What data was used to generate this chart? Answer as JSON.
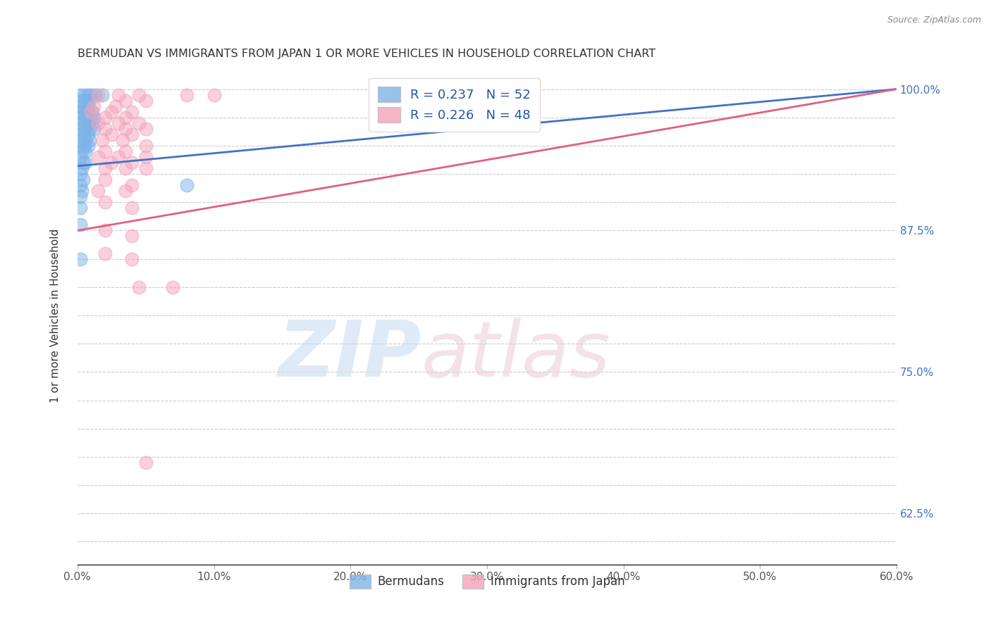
{
  "title": "BERMUDAN VS IMMIGRANTS FROM JAPAN 1 OR MORE VEHICLES IN HOUSEHOLD CORRELATION CHART",
  "source": "Source: ZipAtlas.com",
  "xlim": [
    0.0,
    60.0
  ],
  "ylim": [
    58.0,
    102.0
  ],
  "ylabel": "1 or more Vehicles in Household",
  "R_blue": 0.237,
  "N_blue": 52,
  "R_pink": 0.226,
  "N_pink": 48,
  "blue_color": "#7EB3E8",
  "pink_color": "#F4A3B8",
  "blue_line_color": "#4472C4",
  "pink_line_color": "#E06080",
  "grid_color": "#CCCCCC",
  "title_color": "#333333",
  "right_tick_color": "#4472C4",
  "blue_scatter": [
    [
      0.2,
      99.5
    ],
    [
      0.5,
      99.5
    ],
    [
      0.8,
      99.5
    ],
    [
      1.0,
      99.5
    ],
    [
      1.3,
      99.5
    ],
    [
      1.8,
      99.5
    ],
    [
      0.3,
      99.0
    ],
    [
      0.6,
      99.0
    ],
    [
      0.9,
      99.0
    ],
    [
      0.2,
      98.5
    ],
    [
      0.5,
      98.5
    ],
    [
      0.8,
      98.5
    ],
    [
      0.2,
      98.0
    ],
    [
      0.5,
      98.0
    ],
    [
      0.8,
      98.0
    ],
    [
      1.1,
      98.0
    ],
    [
      0.3,
      97.5
    ],
    [
      0.6,
      97.5
    ],
    [
      0.9,
      97.5
    ],
    [
      1.2,
      97.5
    ],
    [
      0.2,
      97.0
    ],
    [
      0.5,
      97.0
    ],
    [
      0.8,
      97.0
    ],
    [
      1.1,
      97.0
    ],
    [
      0.3,
      96.5
    ],
    [
      0.6,
      96.5
    ],
    [
      0.9,
      96.5
    ],
    [
      1.2,
      96.5
    ],
    [
      0.2,
      96.0
    ],
    [
      0.5,
      96.0
    ],
    [
      0.8,
      96.0
    ],
    [
      0.3,
      95.5
    ],
    [
      0.6,
      95.5
    ],
    [
      0.9,
      95.5
    ],
    [
      0.2,
      95.0
    ],
    [
      0.5,
      95.0
    ],
    [
      0.8,
      95.0
    ],
    [
      0.3,
      94.5
    ],
    [
      0.6,
      94.5
    ],
    [
      0.2,
      94.0
    ],
    [
      0.4,
      93.5
    ],
    [
      0.6,
      93.5
    ],
    [
      0.3,
      93.0
    ],
    [
      0.2,
      92.5
    ],
    [
      0.4,
      92.0
    ],
    [
      0.2,
      91.5
    ],
    [
      0.3,
      91.0
    ],
    [
      0.2,
      90.5
    ],
    [
      0.2,
      89.5
    ],
    [
      0.2,
      88.0
    ],
    [
      8.0,
      91.5
    ],
    [
      0.2,
      85.0
    ]
  ],
  "pink_scatter": [
    [
      1.5,
      99.5
    ],
    [
      3.0,
      99.5
    ],
    [
      4.5,
      99.5
    ],
    [
      8.0,
      99.5
    ],
    [
      10.0,
      99.5
    ],
    [
      3.5,
      99.0
    ],
    [
      5.0,
      99.0
    ],
    [
      1.2,
      98.5
    ],
    [
      2.8,
      98.5
    ],
    [
      1.0,
      98.0
    ],
    [
      2.5,
      98.0
    ],
    [
      4.0,
      98.0
    ],
    [
      2.0,
      97.5
    ],
    [
      3.5,
      97.5
    ],
    [
      1.5,
      97.0
    ],
    [
      3.0,
      97.0
    ],
    [
      4.5,
      97.0
    ],
    [
      2.0,
      96.5
    ],
    [
      3.5,
      96.5
    ],
    [
      5.0,
      96.5
    ],
    [
      2.5,
      96.0
    ],
    [
      4.0,
      96.0
    ],
    [
      1.8,
      95.5
    ],
    [
      3.3,
      95.5
    ],
    [
      5.0,
      95.0
    ],
    [
      2.0,
      94.5
    ],
    [
      3.5,
      94.5
    ],
    [
      1.5,
      94.0
    ],
    [
      3.0,
      94.0
    ],
    [
      5.0,
      94.0
    ],
    [
      2.5,
      93.5
    ],
    [
      4.0,
      93.5
    ],
    [
      2.0,
      93.0
    ],
    [
      3.5,
      93.0
    ],
    [
      5.0,
      93.0
    ],
    [
      2.0,
      92.0
    ],
    [
      4.0,
      91.5
    ],
    [
      1.5,
      91.0
    ],
    [
      3.5,
      91.0
    ],
    [
      2.0,
      90.0
    ],
    [
      4.0,
      89.5
    ],
    [
      2.0,
      87.5
    ],
    [
      4.0,
      87.0
    ],
    [
      2.0,
      85.5
    ],
    [
      4.0,
      85.0
    ],
    [
      4.5,
      82.5
    ],
    [
      7.0,
      82.5
    ],
    [
      5.0,
      67.0
    ]
  ],
  "blue_trendline": [
    0.0,
    93.2,
    60.0,
    100.0
  ],
  "pink_trendline": [
    0.0,
    87.5,
    60.0,
    100.0
  ]
}
